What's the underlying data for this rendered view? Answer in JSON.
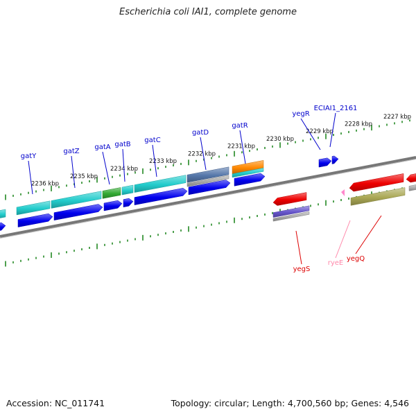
{
  "title": "Escherichia coli IAI1, complete genome",
  "footer": {
    "accession": "Accession: NC_011741",
    "topology": "Topology: circular; Length: 4,700,560 bp; Genes: 4,546"
  },
  "scale": {
    "tick_labels": [
      "2236 kbp",
      "2235 kbp",
      "2234 kbp",
      "2233 kbp",
      "2232 kbp",
      "2231 kbp",
      "2230 kbp",
      "2229 kbp",
      "2228 kbp",
      "2227 kbp"
    ]
  },
  "gene_labels": {
    "forward": [
      "gatY",
      "gatZ",
      "gatA",
      "gatB",
      "gatC",
      "gatD",
      "gatR",
      "yegR",
      "ECIAI1_2161"
    ],
    "reverse": [
      "yegS",
      "ryeE",
      "yegQ"
    ]
  },
  "colors": {
    "forward_label": "#0000cc",
    "reverse_label": "#dd0000",
    "rna_label": "#ff88aa",
    "backbone": "#777777",
    "tick": "#228822",
    "cds_blue": "#0000ee",
    "cyan": "#22cccc",
    "green": "#33aa33",
    "steel": "#5577aa",
    "orange": "#ff8800",
    "red": "#ee0000",
    "olive": "#aaa855",
    "purple": "#6655cc",
    "pink": "#ff88cc"
  }
}
